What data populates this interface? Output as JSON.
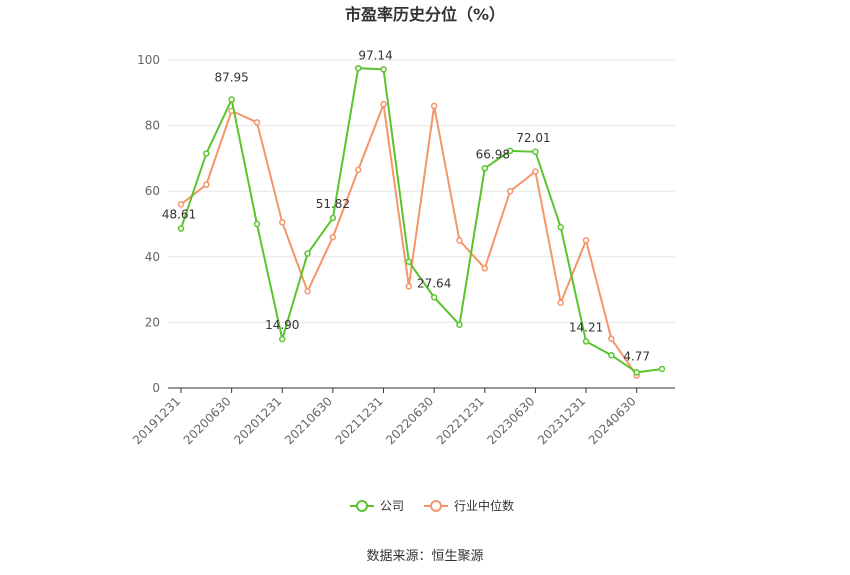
{
  "chart_data": {
    "type": "line",
    "title": "市盈率历史分位（%）",
    "source": "数据来源：恒生聚源",
    "x": [
      "20191231",
      "20200331",
      "20200630",
      "20200930",
      "20201231",
      "20210331",
      "20210630",
      "20210930",
      "20211231",
      "20220331",
      "20220630",
      "20220930",
      "20221231",
      "20230331",
      "20230630",
      "20230930",
      "20231231",
      "20240331",
      "20240630",
      "20240930"
    ],
    "x_tick_labels": [
      "20191231",
      "20200630",
      "20201231",
      "20210630",
      "20211231",
      "20220630",
      "20221231",
      "20230630",
      "20231231",
      "20240630"
    ],
    "y_ticks": [
      0,
      20,
      40,
      60,
      80,
      100
    ],
    "ylim": [
      0,
      100
    ],
    "grid": true,
    "legend_position": "bottom",
    "series": [
      {
        "name": "公司",
        "color": "#5bc42d",
        "values": [
          48.61,
          71.5,
          87.95,
          50.0,
          14.9,
          41.0,
          51.82,
          97.5,
          97.14,
          38.5,
          27.64,
          19.3,
          66.98,
          72.3,
          72.01,
          49.0,
          14.21,
          10.0,
          4.77,
          5.8
        ],
        "labels": {
          "0": "48.61",
          "2": "87.95",
          "4": "14.90",
          "6": "51.82",
          "8": "97.14",
          "10": "27.64",
          "12": "66.98",
          "14": "72.01",
          "16": "14.21",
          "18": "4.77"
        }
      },
      {
        "name": "行业中位数",
        "color": "#f4956a",
        "values": [
          56.0,
          62.0,
          84.5,
          81.0,
          50.5,
          29.5,
          46.0,
          66.5,
          86.5,
          31.0,
          86.0,
          45.0,
          36.5,
          60.0,
          66.0,
          26.0,
          45.0,
          15.0,
          3.8,
          null
        ]
      }
    ]
  }
}
